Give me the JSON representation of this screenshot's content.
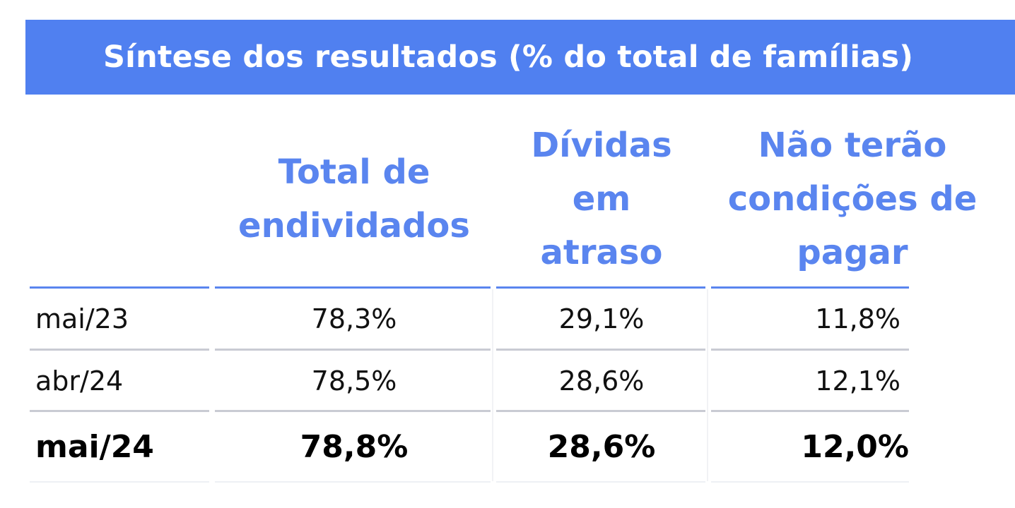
{
  "title": "Síntese dos resultados (% do total de famílias)",
  "headers": {
    "total": [
      "Total de",
      "endividados"
    ],
    "atraso": [
      "Dívidas",
      "em",
      "atraso"
    ],
    "nao_pagar": [
      "Não terão",
      "condições de",
      "pagar"
    ]
  },
  "rows": [
    {
      "label": "mai/23",
      "total": "78,3%",
      "atraso": "29,1%",
      "nao_pagar": "11,8%"
    },
    {
      "label": "abr/24",
      "total": "78,5%",
      "atraso": "28,6%",
      "nao_pagar": "12,1%"
    },
    {
      "label": "mai/24",
      "total": "78,8%",
      "atraso": "28,6%",
      "nao_pagar": "12,0%"
    }
  ],
  "colors": {
    "header_bg": "#5080f0",
    "header_text": "#5a85ef",
    "grid_grey": "#c9cbd3"
  }
}
